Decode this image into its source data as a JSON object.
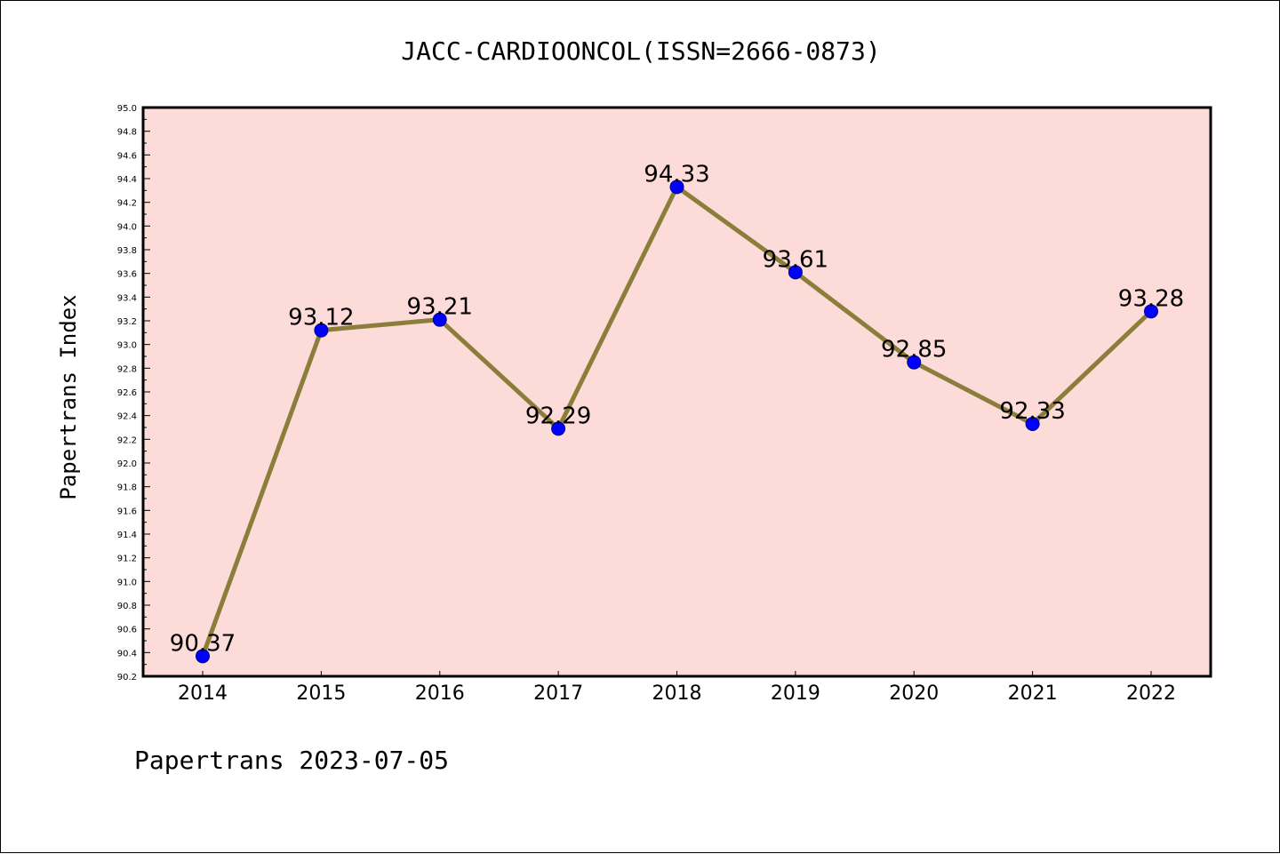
{
  "chart_data": {
    "type": "line",
    "title": "JACC-CARDIOONCOL(ISSN=2666-0873)",
    "xlabel": "",
    "ylabel": "Papertrans Index",
    "footer": "Papertrans 2023-07-05",
    "categories": [
      "2014",
      "2015",
      "2016",
      "2017",
      "2018",
      "2019",
      "2020",
      "2021",
      "2022"
    ],
    "values": [
      90.37,
      93.12,
      93.21,
      92.29,
      94.33,
      93.61,
      92.85,
      92.33,
      93.28
    ],
    "data_labels": [
      "90.37",
      "93.12",
      "93.21",
      "92.29",
      "94.33",
      "93.61",
      "92.85",
      "92.33",
      "93.28"
    ],
    "ylim": [
      90.2,
      95.0
    ],
    "yticks": [
      "90.2",
      "90.4",
      "90.6",
      "90.8",
      "91.0",
      "91.2",
      "91.4",
      "91.6",
      "91.8",
      "92.0",
      "92.2",
      "92.4",
      "92.6",
      "92.8",
      "93.0",
      "93.2",
      "93.4",
      "93.6",
      "93.8",
      "94.0",
      "94.2",
      "94.4",
      "94.6",
      "94.8",
      "95.0"
    ],
    "grid": false,
    "legend": "none",
    "colors": {
      "plot_background": "#fddbd9",
      "line": "#8b7d3a",
      "marker": "#0000ff",
      "marker_edge": "#00008b"
    }
  }
}
